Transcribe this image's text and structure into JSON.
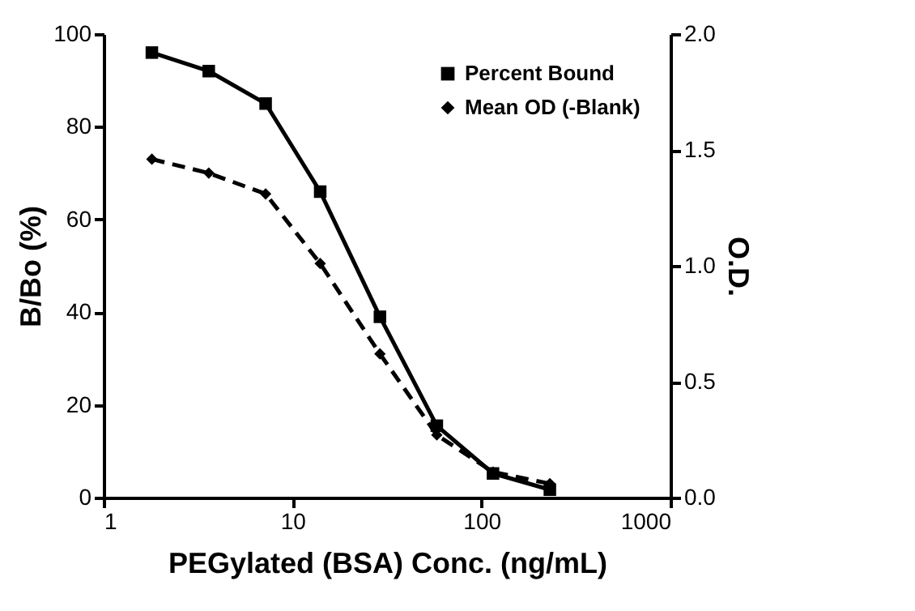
{
  "chart_data": {
    "type": "line",
    "xlabel": "PEGylated (BSA) Conc. (ng/mL)",
    "ylabel": "B/Bo (%)",
    "y2label": "O.D.",
    "log": "x",
    "x": [
      1.8,
      3.6,
      7.2,
      14,
      29,
      58,
      115,
      230
    ],
    "series": [
      {
        "name": "Percent Bound",
        "color": "#000000",
        "marker": "square",
        "line_style": "solid",
        "values": [
          96,
          92,
          85,
          66,
          39,
          15.5,
          5.2,
          1.7
        ]
      },
      {
        "name": "Mean OD (-Blank)",
        "color": "#000000",
        "marker": "diamond",
        "line_style": "dashed",
        "axis": "y2",
        "values": [
          1.46,
          1.4,
          1.31,
          1.01,
          0.62,
          0.27,
          0.11,
          0.06
        ]
      }
    ],
    "xlim": [
      1,
      1000
    ],
    "xticks": [
      1,
      10,
      100,
      1000
    ],
    "ylim": [
      0,
      100
    ],
    "yticks": [
      0,
      20,
      40,
      60,
      80,
      100
    ],
    "y2lim": [
      0,
      2
    ],
    "y2ticks": [
      {
        "value": 0,
        "label": "0.0"
      },
      {
        "value": 0.5,
        "label": "0.5"
      },
      {
        "value": 1,
        "label": "1.0"
      },
      {
        "value": 1.5,
        "label": "1.5"
      },
      {
        "value": 2,
        "label": "2.0"
      }
    ],
    "grid": false,
    "legend": "top right"
  }
}
